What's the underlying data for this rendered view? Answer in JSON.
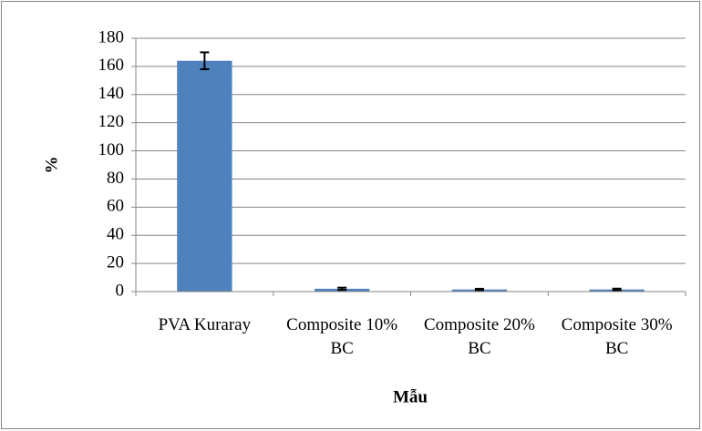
{
  "chart_data": {
    "type": "bar",
    "y_label": "%",
    "x_label": "Mẫu",
    "categories": [
      "PVA Kuraray",
      "Composite 10% BC",
      "Composite 20% BC",
      "Composite 30% BC"
    ],
    "values": [
      164,
      2,
      1.5,
      1.5
    ],
    "errors": [
      6,
      0.8,
      0.5,
      0.6
    ],
    "color": "#4f81bd",
    "ylim": [
      0,
      180
    ],
    "yticks": [
      0,
      20,
      40,
      60,
      80,
      100,
      120,
      140,
      160,
      180
    ],
    "grid": true
  }
}
